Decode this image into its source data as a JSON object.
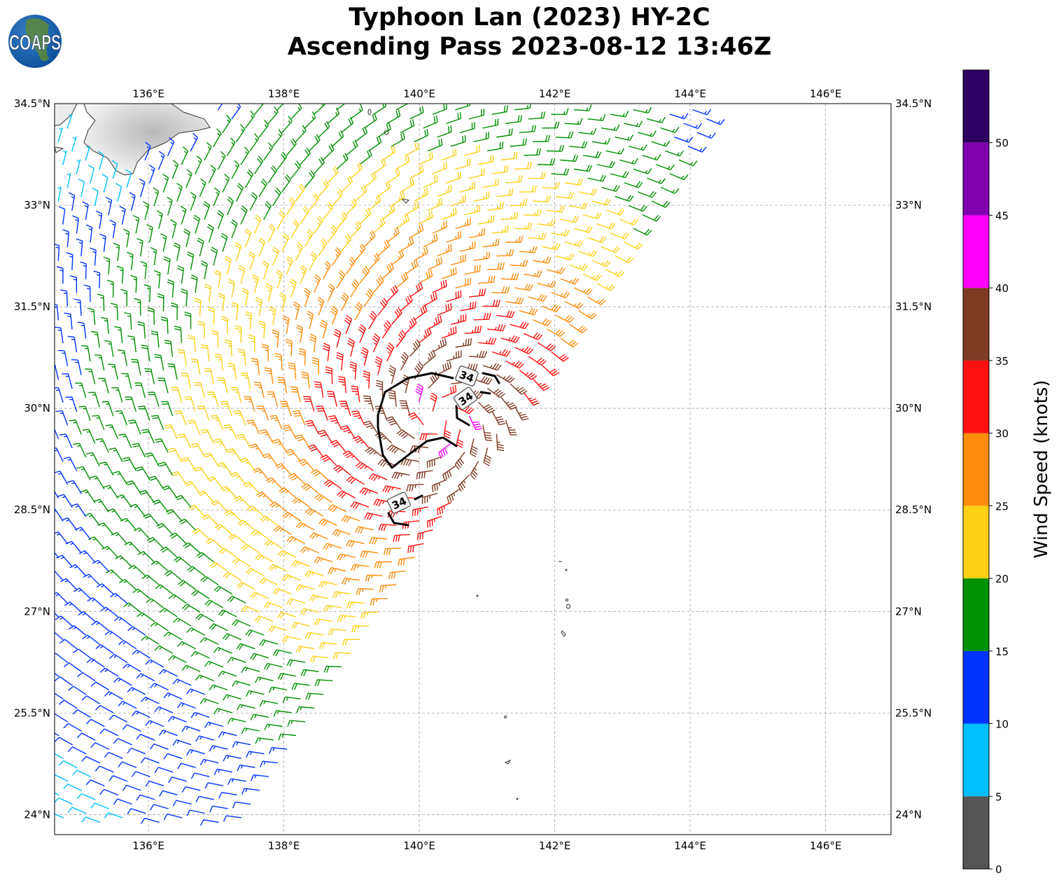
{
  "title": {
    "line1": "Typhoon Lan (2023) HY-2C",
    "line2": "Ascending Pass 2023-08-12 13:46Z"
  },
  "logo": {
    "text": "COAPS"
  },
  "map": {
    "lon_ticks": [
      "136°E",
      "138°E",
      "140°E",
      "142°E",
      "144°E",
      "146°E"
    ],
    "lon_values": [
      136,
      138,
      140,
      142,
      144,
      146
    ],
    "lat_ticks": [
      "34.5°N",
      "33°N",
      "31.5°N",
      "30°N",
      "28.5°N",
      "27°N",
      "25.5°N",
      "24°N"
    ],
    "lat_values": [
      34.5,
      33,
      31.5,
      30,
      28.5,
      27,
      25.5,
      24
    ],
    "extent": {
      "lon": [
        134.6,
        147.0
      ],
      "lat": [
        23.7,
        34.5
      ]
    },
    "gridlines": true,
    "storm_center_approx": {
      "lon": 140.35,
      "lat": 29.85
    },
    "contour_label": "34",
    "contour_labels": [
      "34",
      "34",
      "34"
    ]
  },
  "colorbar": {
    "label": "Wind Speed (knots)",
    "ticks": [
      "0",
      "5",
      "10",
      "15",
      "20",
      "25",
      "30",
      "35",
      "40",
      "45",
      "50"
    ],
    "range": [
      0,
      55
    ],
    "bins": [
      {
        "from": 0,
        "to": 5,
        "color": "#555555"
      },
      {
        "from": 5,
        "to": 10,
        "color": "#00bfff"
      },
      {
        "from": 10,
        "to": 15,
        "color": "#0033ff"
      },
      {
        "from": 15,
        "to": 20,
        "color": "#009000"
      },
      {
        "from": 20,
        "to": 25,
        "color": "#fcd116"
      },
      {
        "from": 25,
        "to": 30,
        "color": "#ff8c0a"
      },
      {
        "from": 30,
        "to": 35,
        "color": "#ff1010"
      },
      {
        "from": 35,
        "to": 40,
        "color": "#7f3a23"
      },
      {
        "from": 40,
        "to": 45,
        "color": "#ff00ff"
      },
      {
        "from": 45,
        "to": 50,
        "color": "#8000b0"
      },
      {
        "from": 50,
        "to": 55,
        "color": "#2c0060"
      }
    ]
  }
}
